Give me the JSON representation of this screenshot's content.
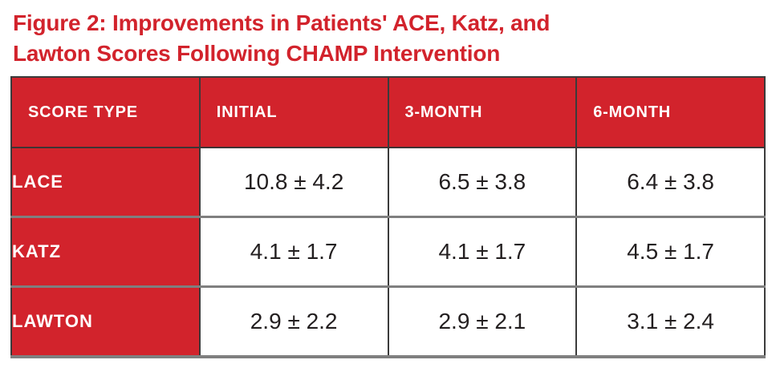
{
  "figure": {
    "title_line1": "Figure 2: Improvements in Patients' ACE, Katz, and",
    "title_line2": "Lawton Scores Following CHAMP Intervention"
  },
  "colors": {
    "accent_red": "#d2232c",
    "border_dark": "#3b3b3b",
    "border_gray": "#7f7f7f",
    "header_text": "#ffffff",
    "value_text": "#231f20"
  },
  "chart_data": {
    "type": "table",
    "title": "Figure 2: Improvements in Patients' ACE, Katz, and Lawton Scores Following CHAMP Intervention",
    "columns": [
      "SCORE TYPE",
      "INITIAL",
      "3-MONTH",
      "6-MONTH"
    ],
    "rows": [
      {
        "label": "LACE",
        "values": [
          "10.8 ± 4.2",
          "6.5 ± 3.8",
          "6.4 ± 3.8"
        ]
      },
      {
        "label": "KATZ",
        "values": [
          "4.1 ± 1.7",
          "4.1 ± 1.7",
          "4.5 ± 1.7"
        ]
      },
      {
        "label": "LAWTON",
        "values": [
          "2.9 ± 2.2",
          "2.9 ± 2.1",
          "3.1 ± 2.4"
        ]
      }
    ],
    "categories": [
      "INITIAL",
      "3-MONTH",
      "6-MONTH"
    ],
    "series": [
      {
        "name": "LACE",
        "means": [
          10.8,
          6.5,
          6.4
        ],
        "sds": [
          4.2,
          3.8,
          3.8
        ]
      },
      {
        "name": "KATZ",
        "means": [
          4.1,
          4.1,
          4.5
        ],
        "sds": [
          1.7,
          1.7,
          1.7
        ]
      },
      {
        "name": "LAWTON",
        "means": [
          2.9,
          2.9,
          3.1
        ],
        "sds": [
          2.2,
          2.1,
          2.4
        ]
      }
    ]
  }
}
